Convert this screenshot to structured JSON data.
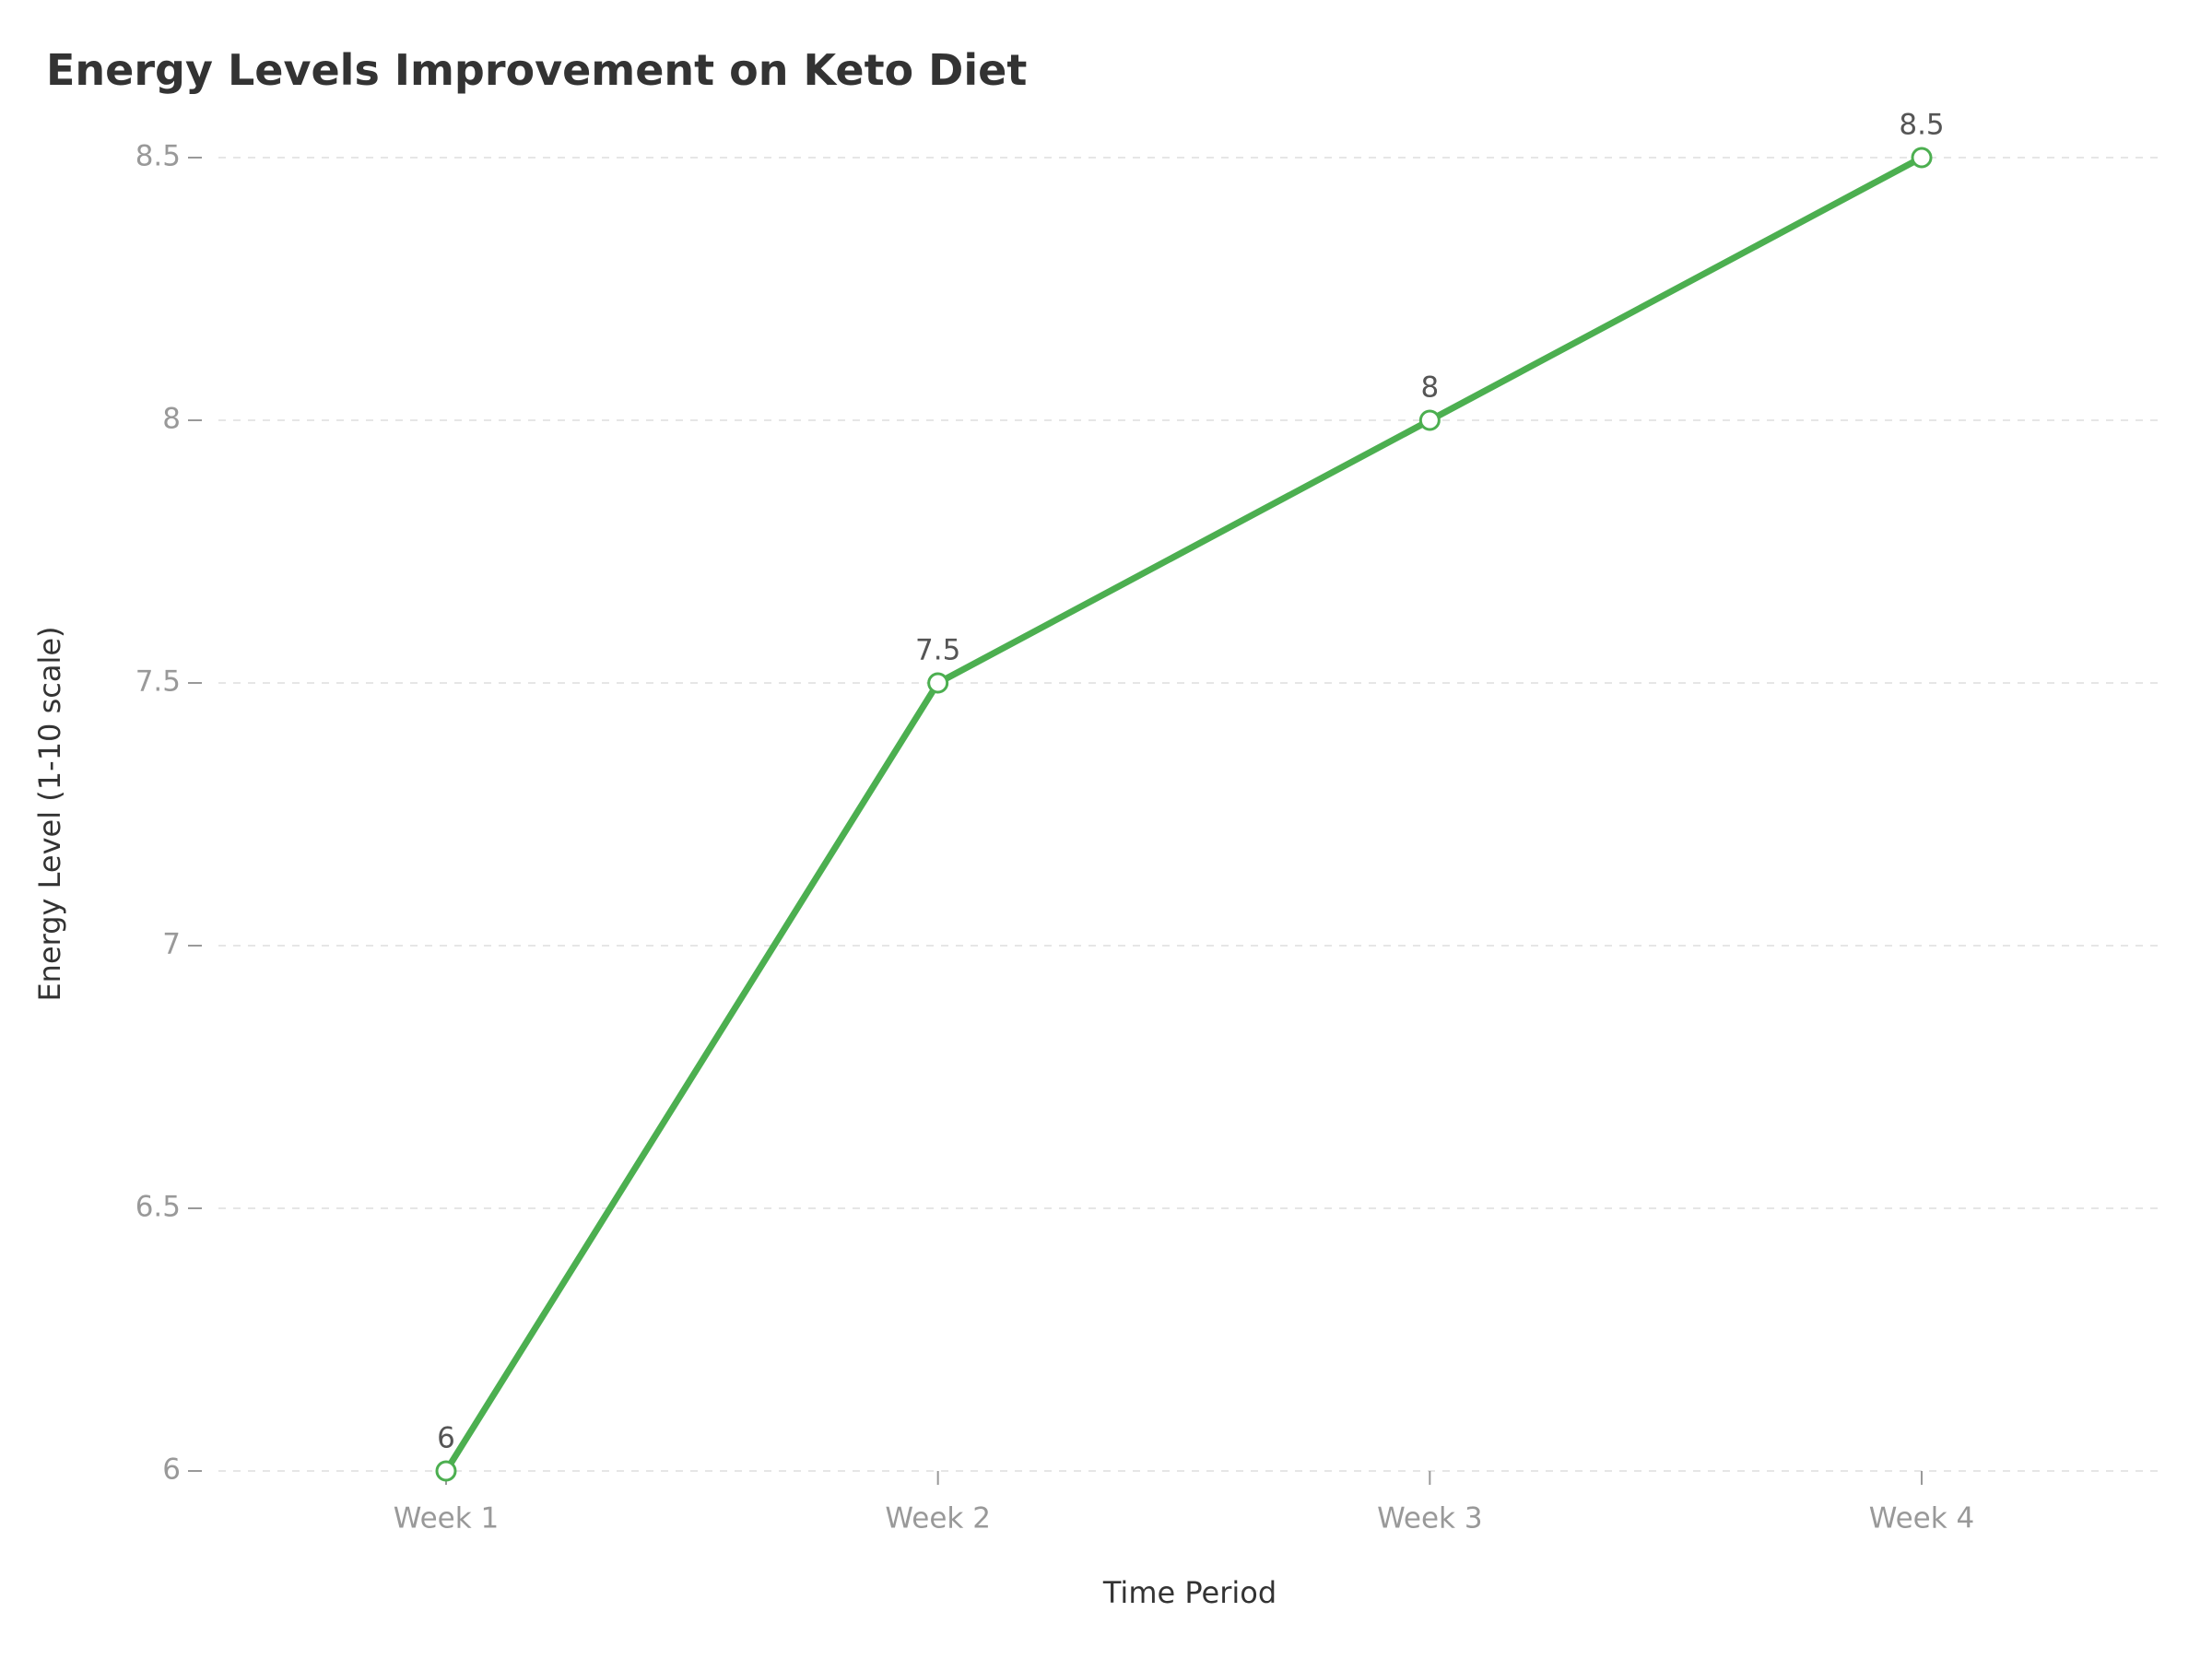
{
  "chart_data": {
    "type": "line",
    "title": "Energy Levels Improvement on Keto Diet",
    "x_label": "Time Period",
    "y_label": "Energy Level (1-10 scale)",
    "categories": [
      "Week 1",
      "Week 2",
      "Week 3",
      "Week 4"
    ],
    "values": [
      6,
      7.5,
      8,
      8.5
    ],
    "color": "#4caf50",
    "ylim": [
      6,
      8.5
    ],
    "yticks": [
      6,
      6.5,
      7,
      7.5,
      8,
      8.5
    ],
    "grid": true
  }
}
